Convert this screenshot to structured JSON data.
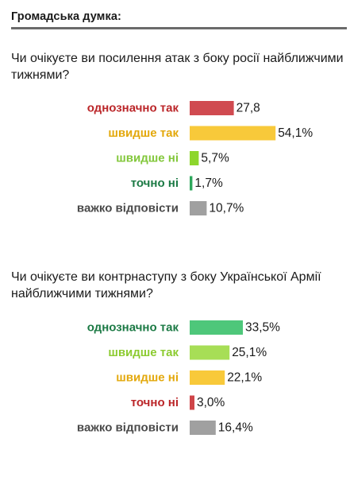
{
  "header": {
    "title": "Громадська думка:"
  },
  "chart_data": [
    {
      "type": "bar",
      "title": "Чи очікуєте ви посилення атак з боку росії найближчими тижнями?",
      "categories": [
        "однозначно так",
        "швидше так",
        "швидше ні",
        "точно ні",
        "важко відповісти"
      ],
      "values": [
        27.8,
        54.1,
        5.7,
        1.7,
        10.7
      ],
      "value_labels": [
        "27,8",
        "54,1%",
        "5,7%",
        "1,7%",
        "10,7%"
      ],
      "bar_colors": [
        "#d04a50",
        "#f8c93a",
        "#8dd62c",
        "#2ea85c",
        "#a0a0a0"
      ],
      "label_colors": [
        "#bb2629",
        "#e3a80b",
        "#82c73a",
        "#1c7a45",
        "#4a4a4a"
      ]
    },
    {
      "type": "bar",
      "title": "Чи очікуєте ви контрнаступу з боку Української Армії найближчими тижнями?",
      "categories": [
        "однозначно так",
        "швидше так",
        "швидше ні",
        "точно ні",
        "важко відповісти"
      ],
      "values": [
        33.5,
        25.1,
        22.1,
        3.0,
        16.4
      ],
      "value_labels": [
        "33,5%",
        "25,1%",
        "22,1%",
        "3,0%",
        "16,4%"
      ],
      "bar_colors": [
        "#4ec77a",
        "#a7de56",
        "#f8c93a",
        "#cf4548",
        "#a0a0a0"
      ],
      "label_colors": [
        "#1c7a45",
        "#8ccb30",
        "#e3a80b",
        "#bb2629",
        "#4a4a4a"
      ]
    }
  ]
}
